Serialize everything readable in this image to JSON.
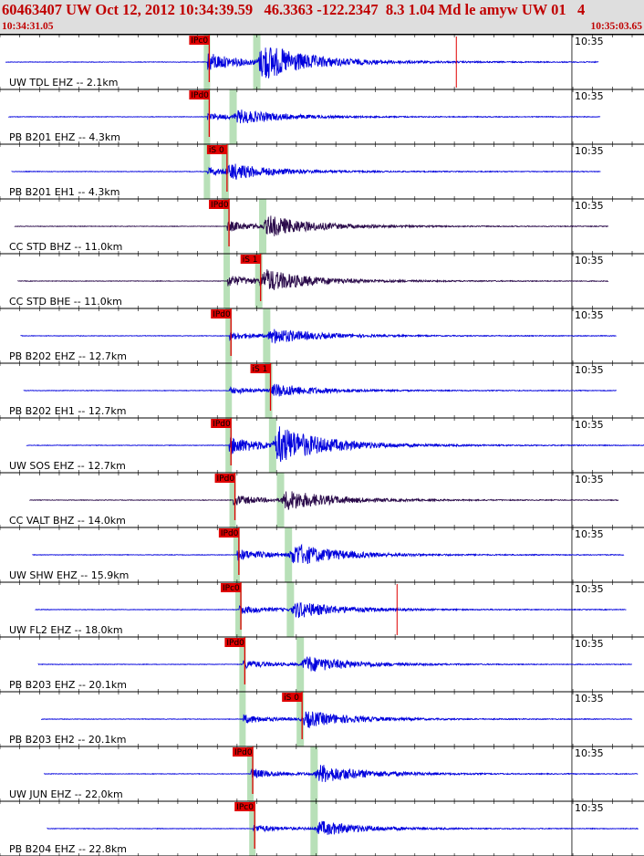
{
  "header": {
    "title": "60463407 UW Oct 12, 2012 10:34:39.59   46.3363 -122.2347  8.3 1.04 Md le amyw UW 01   4",
    "time_start": "10:34:31.05",
    "time_end": "10:35:03.65"
  },
  "chart_data": {
    "type": "line",
    "title": "60463407 UW Oct 12, 2012 10:34:39.59   46.3363 -122.2347  8.3 1.04 Md le amyw UW 01   4",
    "x_unit": "seconds",
    "xlim": [
      "10:34:31.05",
      "10:35:03.65"
    ],
    "duration_s": 32.6,
    "minute_mark": "10:35",
    "colors": {
      "trace": "#0000dd",
      "trace_dark": "#2a0a4a",
      "pick": "#e00000",
      "window": "#b8e0b8",
      "header_text": "#c00000"
    },
    "traces": [
      {
        "label": "UW TDL EHZ -- 2.1km",
        "pick": "IPc0",
        "p_s": 10.5,
        "s_s": 13.0,
        "end_s": 30.3,
        "amp": 1.0,
        "color": "#0000dd",
        "glitch_s": 23.1
      },
      {
        "label": "PB B201 EHZ -- 4.3km",
        "pick": "IPd0",
        "p_s": 10.5,
        "s_s": 11.8,
        "end_s": 30.4,
        "amp": 0.35,
        "color": "#0000dd"
      },
      {
        "label": "PB B201 EH1 -- 4.3km",
        "pick": "iS 0",
        "p_s": 10.5,
        "s_s": 11.4,
        "end_s": 30.4,
        "amp": 0.4,
        "color": "#0000dd"
      },
      {
        "label": "CC STD BHZ -- 11.0km",
        "pick": "IPd0",
        "p_s": 11.5,
        "s_s": 13.3,
        "end_s": 30.8,
        "amp": 0.55,
        "color": "#2a0a4a"
      },
      {
        "label": "CC STD BHE -- 11.0km",
        "pick": "iS 1",
        "p_s": 11.5,
        "s_s": 13.1,
        "end_s": 30.8,
        "amp": 0.6,
        "color": "#2a0a4a"
      },
      {
        "label": "PB B202 EHZ -- 12.7km",
        "pick": "IPd0",
        "p_s": 11.6,
        "s_s": 13.5,
        "end_s": 31.2,
        "amp": 0.4,
        "color": "#0000dd"
      },
      {
        "label": "PB B202 EH1 -- 12.7km",
        "pick": "iS 1",
        "p_s": 11.6,
        "s_s": 13.6,
        "end_s": 31.2,
        "amp": 0.35,
        "color": "#0000dd"
      },
      {
        "label": "UW SOS EHZ -- 12.7km",
        "pick": "IPd0",
        "p_s": 11.6,
        "s_s": 13.8,
        "end_s": 32.6,
        "amp": 1.0,
        "color": "#0000dd"
      },
      {
        "label": "CC VALT BHZ -- 14.0km",
        "pick": "IPd0",
        "p_s": 11.8,
        "s_s": 14.2,
        "end_s": 31.3,
        "amp": 0.55,
        "color": "#2a0a4a"
      },
      {
        "label": "UW SHW EHZ -- 15.9km",
        "pick": "IPd0",
        "p_s": 12.0,
        "s_s": 14.6,
        "end_s": 31.6,
        "amp": 0.6,
        "color": "#0000dd"
      },
      {
        "label": "UW FL2 EHZ -- 18.0km",
        "pick": "IPc0",
        "p_s": 12.1,
        "s_s": 14.7,
        "end_s": 31.7,
        "amp": 0.45,
        "color": "#0000dd",
        "glitch_s": 20.1
      },
      {
        "label": "PB B203 EHZ -- 20.1km",
        "pick": "IPd0",
        "p_s": 12.3,
        "s_s": 15.2,
        "end_s": 32.0,
        "amp": 0.45,
        "color": "#0000dd"
      },
      {
        "label": "PB B203 EH2 -- 20.1km",
        "pick": "iS 0",
        "p_s": 12.3,
        "s_s": 15.2,
        "end_s": 32.0,
        "amp": 0.45,
        "color": "#0000dd"
      },
      {
        "label": "UW JUN EHZ -- 22.0km",
        "pick": "IPd0",
        "p_s": 12.7,
        "s_s": 15.9,
        "end_s": 32.3,
        "amp": 0.5,
        "color": "#0000dd"
      },
      {
        "label": "PB B204 EHZ -- 22.8km",
        "pick": "IPc0",
        "p_s": 12.8,
        "s_s": 15.9,
        "end_s": 32.3,
        "amp": 0.4,
        "color": "#0000dd"
      }
    ]
  }
}
